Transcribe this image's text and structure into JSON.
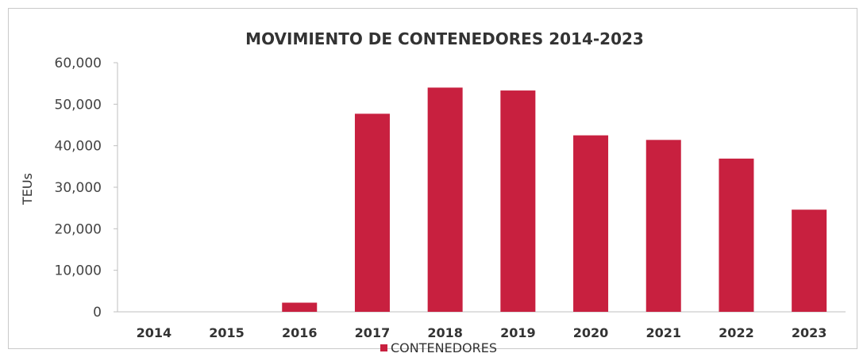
{
  "chart_data": {
    "type": "bar",
    "title": "MOVIMIENTO DE CONTENEDORES 2014-2023",
    "ylabel": "TEUs",
    "xlabel": "",
    "categories": [
      "2014",
      "2015",
      "2016",
      "2017",
      "2018",
      "2019",
      "2020",
      "2021",
      "2022",
      "2023"
    ],
    "series": [
      {
        "name": "CONTENEDORES",
        "values": [
          0,
          0,
          2200,
          47700,
          54000,
          53300,
          42500,
          41400,
          36900,
          24600
        ],
        "color": "#c8203f"
      }
    ],
    "ylim": [
      0,
      60000
    ],
    "yticks": [
      0,
      10000,
      20000,
      30000,
      40000,
      50000,
      60000
    ],
    "ytick_labels": [
      "0",
      "10,000",
      "20,000",
      "30,000",
      "40,000",
      "50,000",
      "60,000"
    ],
    "grid": false,
    "legend": "bottom"
  }
}
